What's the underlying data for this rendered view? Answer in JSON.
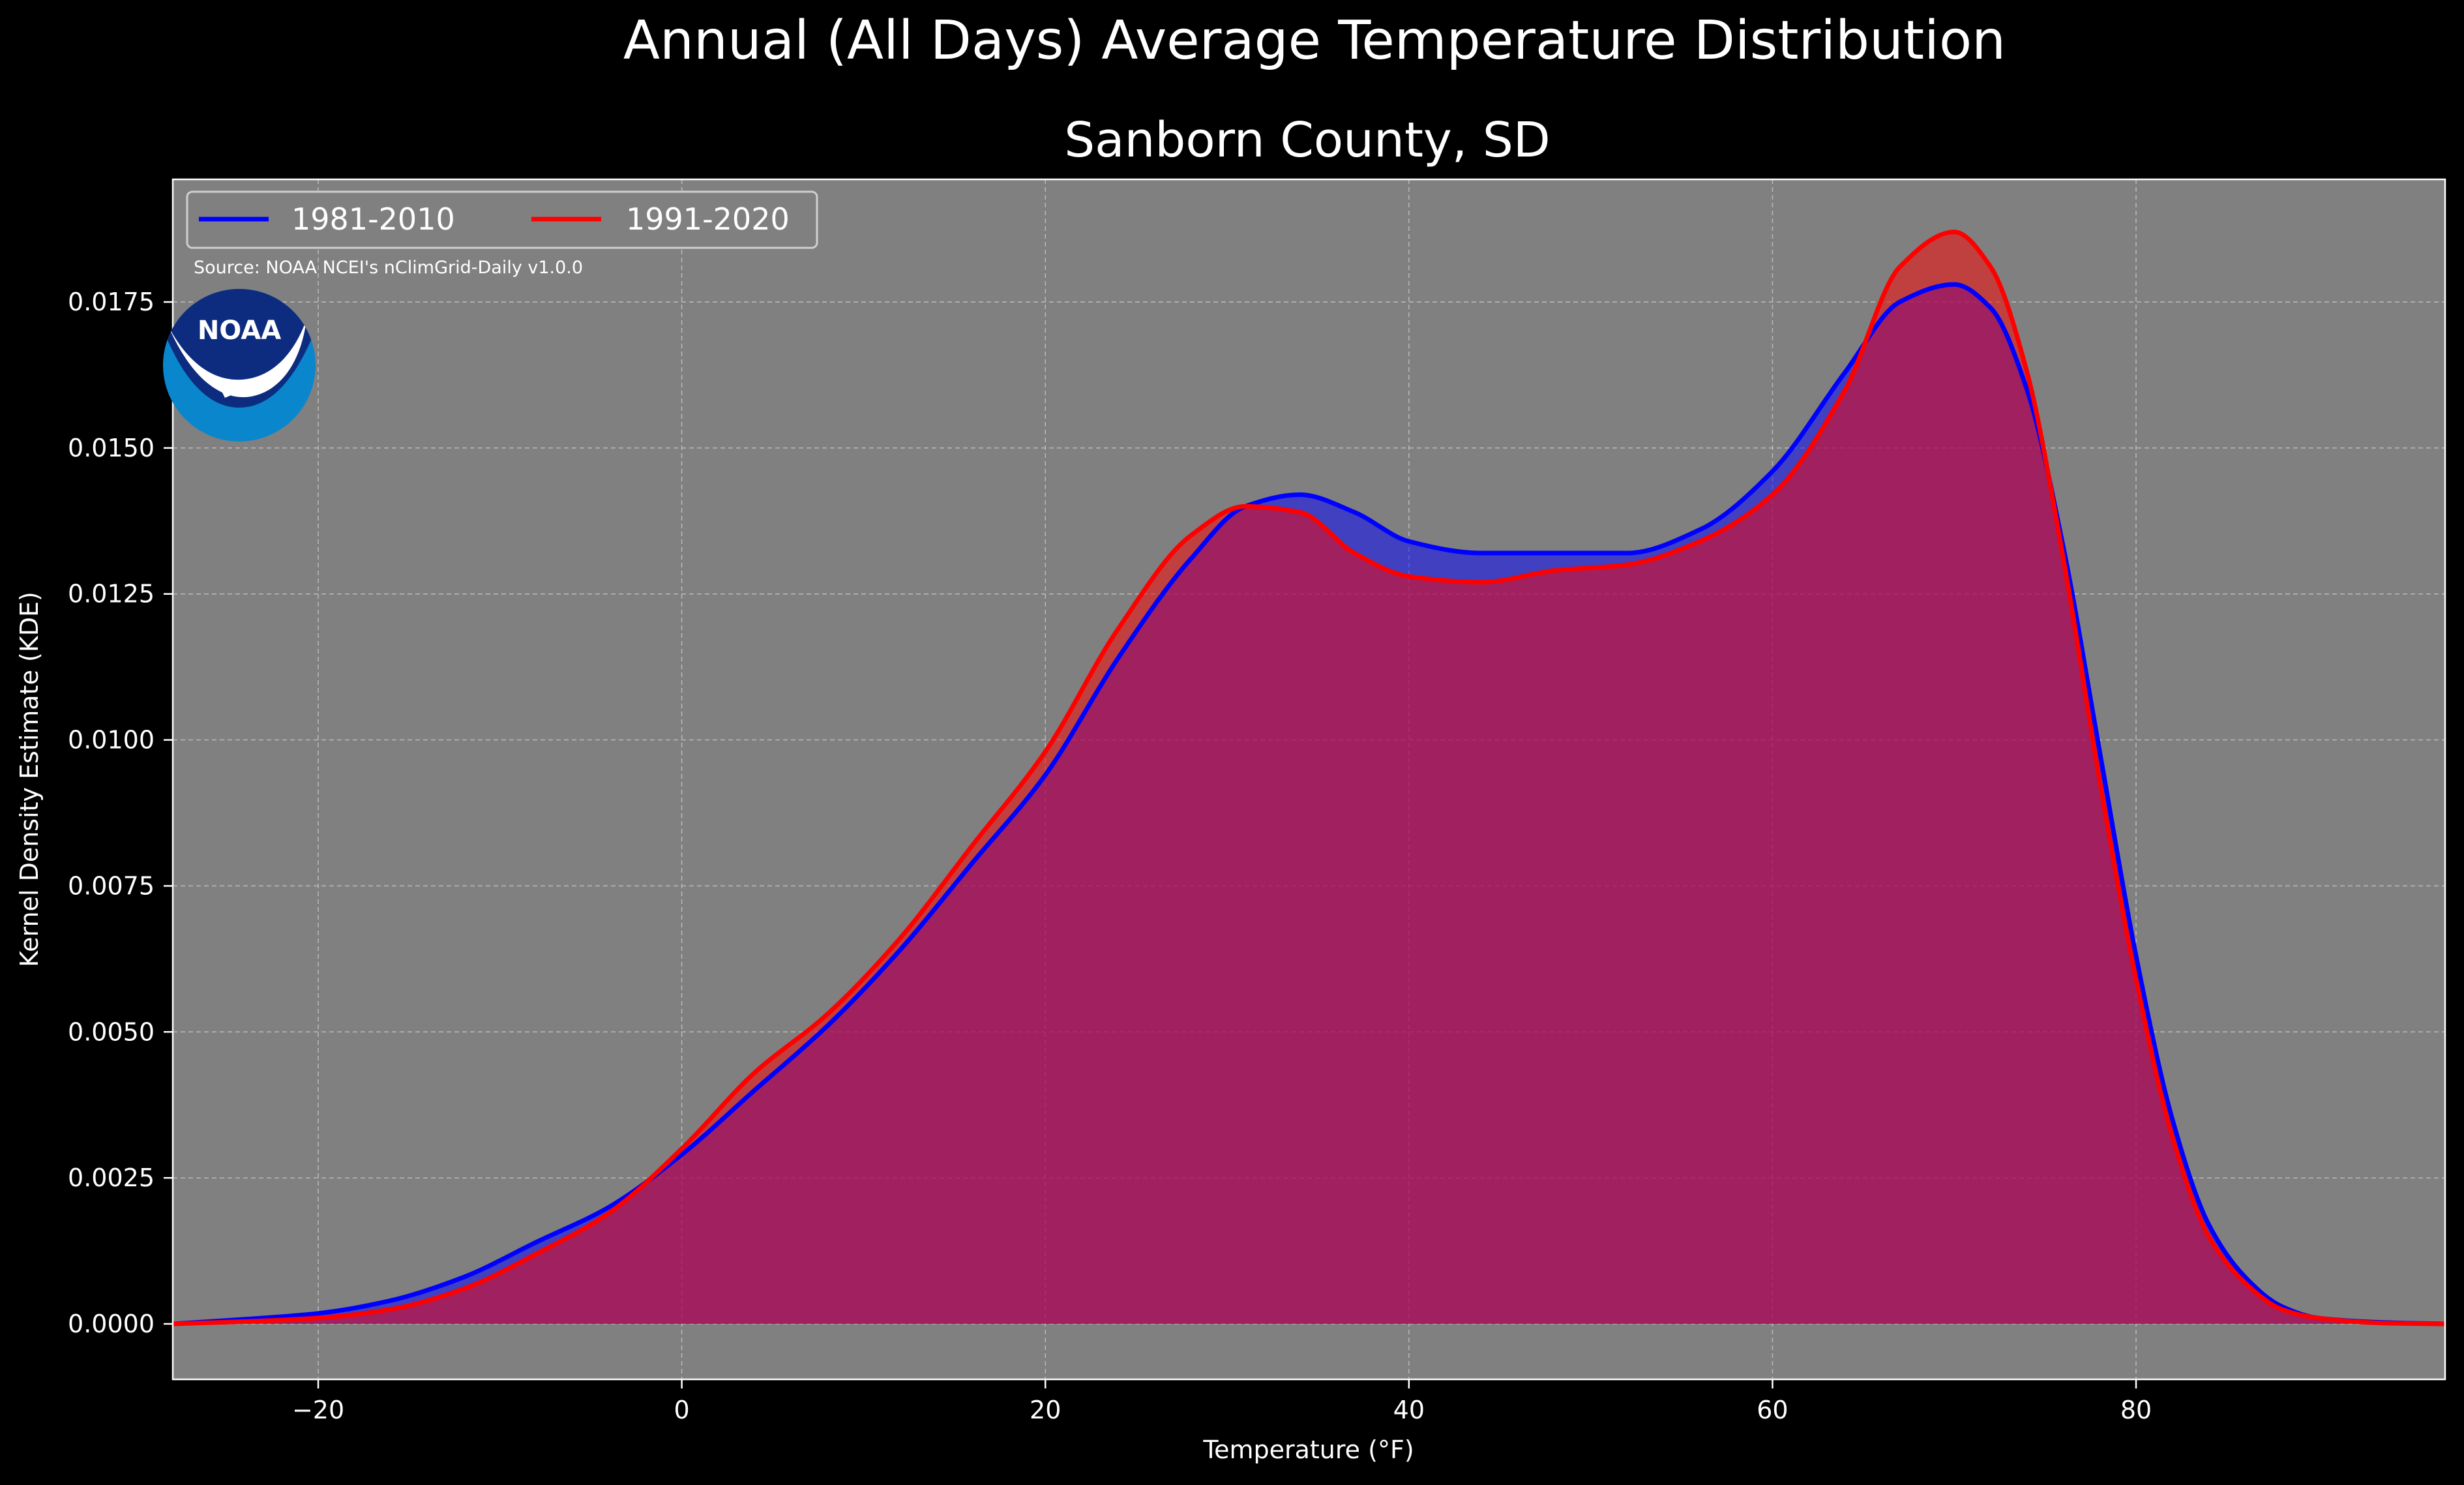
{
  "chart_data": {
    "type": "area",
    "title": "Annual (All Days) Average Temperature Distribution",
    "subtitle": "Sanborn County, SD",
    "xlabel": "Temperature (°F)",
    "ylabel": "Kernel Density Estimate (KDE)",
    "source": "Source: NOAA NCEI's nClimGrid-Daily v1.0.0",
    "logo_text": "NOAA",
    "xlim": [
      -28,
      97
    ],
    "ylim": [
      -0.00095,
      0.0196
    ],
    "xticks": [
      -20,
      0,
      20,
      40,
      60,
      80
    ],
    "xtick_labels": [
      "−20",
      "0",
      "20",
      "40",
      "60",
      "80"
    ],
    "yticks": [
      0.0,
      0.0025,
      0.005,
      0.0075,
      0.01,
      0.0125,
      0.015,
      0.0175
    ],
    "ytick_labels": [
      "0.0000",
      "0.0025",
      "0.0050",
      "0.0075",
      "0.0100",
      "0.0125",
      "0.0150",
      "0.0175"
    ],
    "grid": true,
    "legend_position": "top-left",
    "background": "#808080",
    "series": [
      {
        "name": "1981-2010",
        "color": "#0000ff",
        "fill": "#0000ff",
        "x": [
          -28,
          -24,
          -20,
          -16,
          -12,
          -8,
          -4,
          0,
          4,
          8,
          12,
          16,
          20,
          24,
          28,
          31,
          34,
          37,
          40,
          44,
          48,
          52,
          56,
          60,
          64,
          67,
          70,
          72,
          74,
          76,
          78,
          80,
          82,
          84,
          86,
          88,
          90,
          94,
          97
        ],
        "y": [
          0.0,
          8e-05,
          0.00018,
          0.0004,
          0.0008,
          0.0014,
          0.002,
          0.0029,
          0.004,
          0.0051,
          0.0064,
          0.0079,
          0.0094,
          0.0114,
          0.0131,
          0.014,
          0.0142,
          0.0139,
          0.0134,
          0.0132,
          0.0132,
          0.0132,
          0.0136,
          0.0146,
          0.0163,
          0.0175,
          0.0178,
          0.0174,
          0.016,
          0.0133,
          0.0098,
          0.0063,
          0.0035,
          0.0017,
          0.0008,
          0.0003,
          0.0001,
          2e-05,
          0.0
        ]
      },
      {
        "name": "1991-2020",
        "color": "#ff0000",
        "fill": "#ff0000",
        "x": [
          -28,
          -24,
          -20,
          -16,
          -12,
          -8,
          -4,
          0,
          4,
          8,
          12,
          16,
          20,
          24,
          28,
          31,
          34,
          37,
          40,
          44,
          48,
          52,
          56,
          60,
          64,
          67,
          70,
          72,
          74,
          76,
          78,
          80,
          82,
          84,
          86,
          88,
          90,
          94,
          97
        ],
        "y": [
          0.0,
          4e-05,
          0.0001,
          0.00025,
          0.0006,
          0.0012,
          0.0019,
          0.003,
          0.0043,
          0.0053,
          0.0066,
          0.0082,
          0.0098,
          0.0119,
          0.0135,
          0.014,
          0.0139,
          0.0132,
          0.0128,
          0.0127,
          0.0129,
          0.013,
          0.0134,
          0.0142,
          0.016,
          0.0181,
          0.0187,
          0.0181,
          0.0163,
          0.0131,
          0.0093,
          0.0059,
          0.0032,
          0.0015,
          0.0007,
          0.00025,
          0.0001,
          1e-05,
          0.0
        ]
      }
    ]
  }
}
